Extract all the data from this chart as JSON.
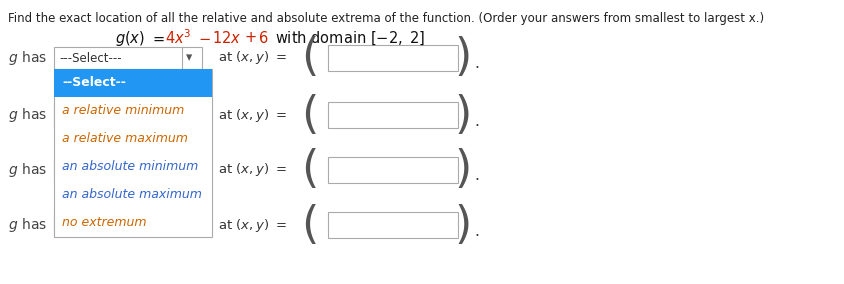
{
  "title": "Find the exact location of all the relative and absolute extrema of the function. (Order your answers from smallest to largest x.)",
  "background_color": "#ffffff",
  "text_color": "#333333",
  "orange_color": "#cc2200",
  "dropdown_blue": "#2196f3",
  "dropdown_items": [
    "--Select--",
    "a relative minimum",
    "a relative maximum",
    "an absolute minimum",
    "an absolute maximum",
    "no extremum"
  ],
  "item_fg_colors": [
    "#ffffff",
    "#cc6600",
    "#cc6600",
    "#3366cc",
    "#3366cc",
    "#cc6600"
  ],
  "row_labels": [
    "g has",
    "g has",
    "g has",
    "g has"
  ],
  "row_at_text": "at (x, y) =",
  "select_text": "---Select---"
}
